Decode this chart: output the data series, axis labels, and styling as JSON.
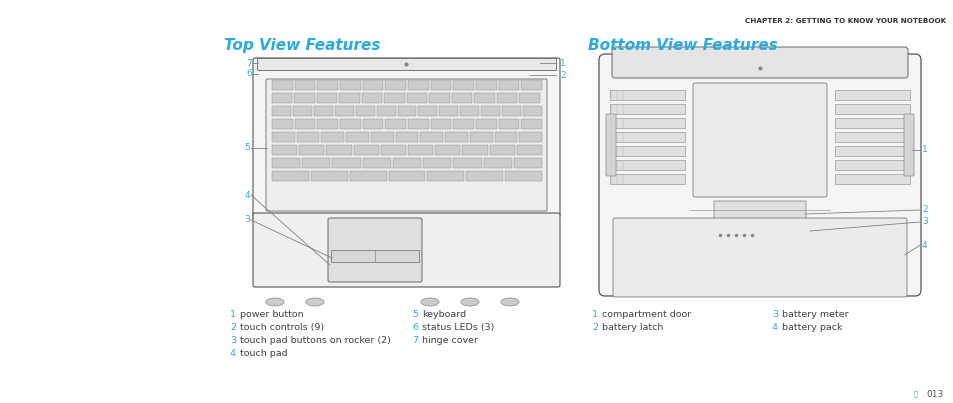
{
  "chapter_text": "CHAPTER 2: GETTING TO KNOW YOUR NOTEBOOK",
  "title_top": "Top View Features",
  "title_bottom": "Bottom View Features",
  "page_indicator": "013",
  "cyan_color": "#29ABE2",
  "dark_gray": "#414042",
  "light_gray": "#808080",
  "bg_color": "#ffffff",
  "top_labels_left": [
    {
      "num": "1",
      "text": "power button"
    },
    {
      "num": "2",
      "text": "touch controls (9)"
    },
    {
      "num": "3",
      "text": "touch pad buttons on rocker (2)"
    },
    {
      "num": "4",
      "text": "touch pad"
    }
  ],
  "top_labels_right": [
    {
      "num": "5",
      "text": "keyboard"
    },
    {
      "num": "6",
      "text": "status LEDs (3)"
    },
    {
      "num": "7",
      "text": "hinge cover"
    }
  ],
  "bottom_labels_left": [
    {
      "num": "1",
      "text": "compartment door"
    },
    {
      "num": "2",
      "text": "battery latch"
    }
  ],
  "bottom_labels_right": [
    {
      "num": "3",
      "text": "battery meter"
    },
    {
      "num": "4",
      "text": "battery pack"
    }
  ]
}
